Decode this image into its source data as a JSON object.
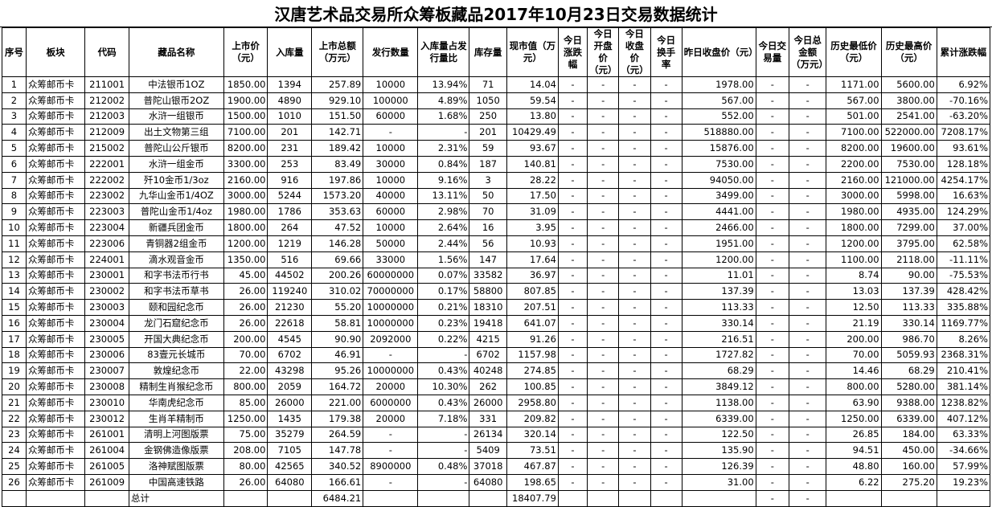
{
  "title": "汉唐艺术品交易所众筹板藏品2017年10月23日交易数据统计",
  "headers": [
    "序号",
    "板块",
    "代码",
    "藏品名称",
    "上市价（元）",
    "入库量",
    "上市总额（万元）",
    "发行数量",
    "入库量占发行量比",
    "库存量",
    "现市值（万元）",
    "今日涨跌幅",
    "今日开盘价（元）",
    "今日收盘价（元）",
    "今日换手率",
    "昨日收盘价（元）",
    "今日交易量",
    "今日总金额（万元）",
    "历史最低价（元）",
    "历史最高价（元）",
    "累计涨跌幅"
  ],
  "rows": [
    [
      "1",
      "众筹邮币卡",
      "211001",
      "中法银币1OZ",
      "1850.00",
      "1394",
      "257.89",
      "10000",
      "13.94%",
      "71",
      "14.04",
      "-",
      "-",
      "-",
      "-",
      "1978.00",
      "-",
      "-",
      "1171.00",
      "5600.00",
      "6.92%"
    ],
    [
      "2",
      "众筹邮币卡",
      "212002",
      "普陀山银币2OZ",
      "1900.00",
      "4890",
      "929.10",
      "100000",
      "4.89%",
      "1050",
      "59.54",
      "-",
      "-",
      "-",
      "-",
      "567.00",
      "-",
      "-",
      "567.00",
      "3800.00",
      "-70.16%"
    ],
    [
      "3",
      "众筹邮币卡",
      "212003",
      "水浒一组银币",
      "1500.00",
      "1010",
      "151.50",
      "60000",
      "1.68%",
      "250",
      "13.80",
      "-",
      "-",
      "-",
      "-",
      "552.00",
      "-",
      "-",
      "501.00",
      "2541.00",
      "-63.20%"
    ],
    [
      "4",
      "众筹邮币卡",
      "212009",
      "出土文物第三组",
      "7100.00",
      "201",
      "142.71",
      "-",
      "-",
      "201",
      "10429.49",
      "-",
      "-",
      "-",
      "-",
      "518880.00",
      "-",
      "-",
      "7100.00",
      "522000.00",
      "7208.17%"
    ],
    [
      "5",
      "众筹邮币卡",
      "215002",
      "普陀山公斤银币",
      "8200.00",
      "231",
      "189.42",
      "10000",
      "2.31%",
      "59",
      "93.67",
      "-",
      "-",
      "-",
      "-",
      "15876.00",
      "-",
      "-",
      "8200.00",
      "19600.00",
      "93.61%"
    ],
    [
      "6",
      "众筹邮币卡",
      "222001",
      "水浒一组金币",
      "3300.00",
      "253",
      "83.49",
      "30000",
      "0.84%",
      "187",
      "140.81",
      "-",
      "-",
      "-",
      "-",
      "7530.00",
      "-",
      "-",
      "2200.00",
      "7530.00",
      "128.18%"
    ],
    [
      "7",
      "众筹邮币卡",
      "222002",
      "歼10金币1/3oz",
      "2160.00",
      "916",
      "197.86",
      "10000",
      "9.16%",
      "3",
      "28.22",
      "-",
      "-",
      "-",
      "-",
      "94050.00",
      "-",
      "-",
      "2160.00",
      "121000.00",
      "4254.17%"
    ],
    [
      "8",
      "众筹邮币卡",
      "223002",
      "九华山金币1/4OZ",
      "3000.00",
      "5244",
      "1573.20",
      "40000",
      "13.11%",
      "50",
      "17.50",
      "-",
      "-",
      "-",
      "-",
      "3499.00",
      "-",
      "-",
      "3000.00",
      "5998.00",
      "16.63%"
    ],
    [
      "9",
      "众筹邮币卡",
      "223003",
      "普陀山金币1/4oz",
      "1980.00",
      "1786",
      "353.63",
      "60000",
      "2.98%",
      "70",
      "31.09",
      "-",
      "-",
      "-",
      "-",
      "4441.00",
      "-",
      "-",
      "1980.00",
      "4935.00",
      "124.29%"
    ],
    [
      "10",
      "众筹邮币卡",
      "223004",
      "新疆兵团金币",
      "1800.00",
      "264",
      "47.52",
      "10000",
      "2.64%",
      "16",
      "3.95",
      "-",
      "-",
      "-",
      "-",
      "2466.00",
      "-",
      "-",
      "1800.00",
      "7299.00",
      "37.00%"
    ],
    [
      "11",
      "众筹邮币卡",
      "223006",
      "青铜器2组金币",
      "1200.00",
      "1219",
      "146.28",
      "50000",
      "2.44%",
      "56",
      "10.93",
      "-",
      "-",
      "-",
      "-",
      "1951.00",
      "-",
      "-",
      "1200.00",
      "3795.00",
      "62.58%"
    ],
    [
      "12",
      "众筹邮币卡",
      "224001",
      "滴水观音金币",
      "1350.00",
      "516",
      "69.66",
      "33000",
      "1.56%",
      "147",
      "17.64",
      "-",
      "-",
      "-",
      "-",
      "1200.00",
      "-",
      "-",
      "1100.00",
      "2118.00",
      "-11.11%"
    ],
    [
      "13",
      "众筹邮币卡",
      "230001",
      "和字书法币行书",
      "45.00",
      "44502",
      "200.26",
      "60000000",
      "0.07%",
      "33582",
      "36.97",
      "-",
      "-",
      "-",
      "-",
      "11.01",
      "-",
      "-",
      "8.74",
      "90.00",
      "-75.53%"
    ],
    [
      "14",
      "众筹邮币卡",
      "230002",
      "和字书法币草书",
      "26.00",
      "119240",
      "310.02",
      "70000000",
      "0.17%",
      "58800",
      "807.85",
      "-",
      "-",
      "-",
      "-",
      "137.39",
      "-",
      "-",
      "13.03",
      "137.39",
      "428.42%"
    ],
    [
      "15",
      "众筹邮币卡",
      "230003",
      "颐和园纪念币",
      "26.00",
      "21230",
      "55.20",
      "10000000",
      "0.21%",
      "18310",
      "207.51",
      "-",
      "-",
      "-",
      "-",
      "113.33",
      "-",
      "-",
      "12.50",
      "113.33",
      "335.88%"
    ],
    [
      "16",
      "众筹邮币卡",
      "230004",
      "龙门石窟纪念币",
      "26.00",
      "22618",
      "58.81",
      "10000000",
      "0.23%",
      "19418",
      "641.07",
      "-",
      "-",
      "-",
      "-",
      "330.14",
      "-",
      "-",
      "21.19",
      "330.14",
      "1169.77%"
    ],
    [
      "17",
      "众筹邮币卡",
      "230005",
      "开国大典纪念币",
      "200.00",
      "4545",
      "90.90",
      "2092000",
      "0.22%",
      "4215",
      "91.26",
      "-",
      "-",
      "-",
      "-",
      "216.51",
      "-",
      "-",
      "200.00",
      "986.70",
      "8.26%"
    ],
    [
      "18",
      "众筹邮币卡",
      "230006",
      "83壹元长城币",
      "70.00",
      "6702",
      "46.91",
      "-",
      "-",
      "6702",
      "1157.98",
      "-",
      "-",
      "-",
      "-",
      "1727.82",
      "-",
      "-",
      "70.00",
      "5059.93",
      "2368.31%"
    ],
    [
      "19",
      "众筹邮币卡",
      "230007",
      "敦煌纪念币",
      "22.00",
      "43298",
      "95.26",
      "10000000",
      "0.43%",
      "40248",
      "274.85",
      "-",
      "-",
      "-",
      "-",
      "68.29",
      "-",
      "-",
      "14.46",
      "68.29",
      "210.41%"
    ],
    [
      "20",
      "众筹邮币卡",
      "230008",
      "精制生肖猴纪念币",
      "800.00",
      "2059",
      "164.72",
      "20000",
      "10.30%",
      "262",
      "100.85",
      "-",
      "-",
      "-",
      "-",
      "3849.12",
      "-",
      "-",
      "800.00",
      "5280.00",
      "381.14%"
    ],
    [
      "21",
      "众筹邮币卡",
      "230010",
      "华南虎纪念币",
      "85.00",
      "26000",
      "221.00",
      "6000000",
      "0.43%",
      "26000",
      "2958.80",
      "-",
      "-",
      "-",
      "-",
      "1138.00",
      "-",
      "-",
      "63.90",
      "9388.00",
      "1238.82%"
    ],
    [
      "22",
      "众筹邮币卡",
      "230012",
      "生肖羊精制币",
      "1250.00",
      "1435",
      "179.38",
      "20000",
      "7.18%",
      "331",
      "209.82",
      "-",
      "-",
      "-",
      "-",
      "6339.00",
      "-",
      "-",
      "1250.00",
      "6339.00",
      "407.12%"
    ],
    [
      "23",
      "众筹邮币卡",
      "261001",
      "清明上河图版票",
      "75.00",
      "35279",
      "264.59",
      "-",
      "-",
      "26134",
      "320.14",
      "-",
      "-",
      "-",
      "-",
      "122.50",
      "-",
      "-",
      "26.85",
      "184.00",
      "63.33%"
    ],
    [
      "24",
      "众筹邮币卡",
      "261004",
      "金钢佛造像版票",
      "208.00",
      "7105",
      "147.78",
      "-",
      "-",
      "5409",
      "73.51",
      "-",
      "-",
      "-",
      "-",
      "135.90",
      "-",
      "-",
      "94.51",
      "450.00",
      "-34.66%"
    ],
    [
      "25",
      "众筹邮币卡",
      "261005",
      "洛神赋图版票",
      "80.00",
      "42565",
      "340.52",
      "8900000",
      "0.48%",
      "37018",
      "467.87",
      "-",
      "-",
      "-",
      "-",
      "126.39",
      "-",
      "-",
      "48.80",
      "160.00",
      "57.99%"
    ],
    [
      "26",
      "众筹邮币卡",
      "261009",
      "中国高速铁路",
      "26.00",
      "64080",
      "166.61",
      "-",
      "-",
      "64080",
      "198.65",
      "-",
      "-",
      "-",
      "-",
      "31.00",
      "-",
      "-",
      "6.22",
      "275.20",
      "19.23%"
    ]
  ],
  "total": {
    "label": "总计",
    "listing_total": "6484.21",
    "market_value": "18407.79",
    "volume": "-",
    "amount": "-"
  }
}
